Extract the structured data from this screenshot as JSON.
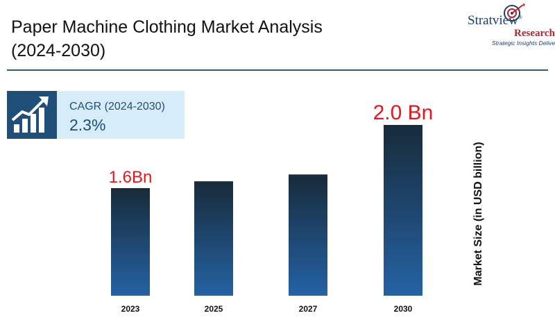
{
  "header": {
    "title_line1": "Paper Machine Clothing Market Analysis",
    "title_line2": "(2024-2030)"
  },
  "logo": {
    "brand": "Stratview",
    "registered": "®",
    "research": "Research",
    "tagline": "Strategic Insights Delivered"
  },
  "cagr": {
    "icon": "growth-chart-icon",
    "label": "CAGR (2024-2030)",
    "value": "2.3%"
  },
  "chart_data": {
    "type": "bar",
    "categories": [
      "2023",
      "2025",
      "2027",
      "2030"
    ],
    "values": [
      1.6,
      1.68,
      1.76,
      2.0
    ],
    "data_labels": [
      "1.6Bn",
      "",
      "",
      "2.0 Bn"
    ],
    "ylabel": "Market Size (in USD billion)",
    "ylim": [
      0,
      2.0
    ],
    "grid": false,
    "colors": {
      "bar_top": "#182b3a",
      "bar_bottom": "#2462a4",
      "label": "#e8141d"
    }
  }
}
